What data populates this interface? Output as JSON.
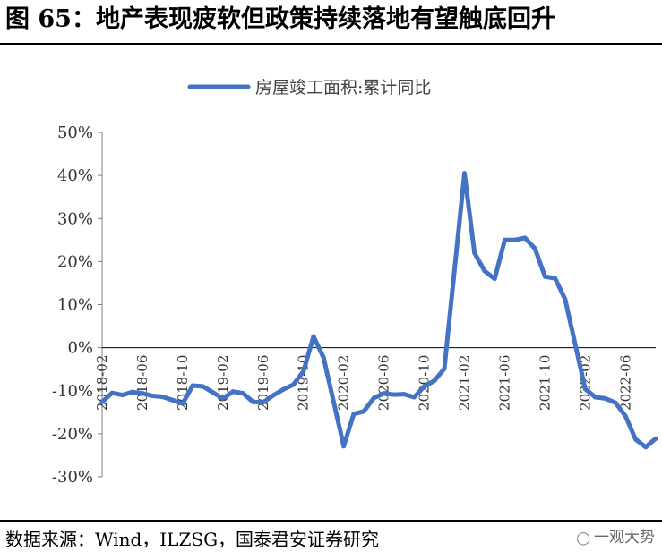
{
  "figure": {
    "title": "图 65：地产表现疲软但政策持续落地有望触底回升",
    "source": "数据来源：Wind，ILZSG，国泰君安证券研究",
    "watermark": "一观大势"
  },
  "colors": {
    "series_line": "#4472C4",
    "axis": "#808080",
    "text": "#000000"
  },
  "chart_data": {
    "type": "line",
    "title": "",
    "xlabel": "",
    "ylabel": "",
    "ylim": [
      -0.3,
      0.5
    ],
    "ytick_step": 0.1,
    "yticks": [
      "50%",
      "40%",
      "30%",
      "20%",
      "10%",
      "0%",
      "-10%",
      "-20%",
      "-30%"
    ],
    "xticks": [
      "2018-02",
      "2018-06",
      "2018-10",
      "2019-02",
      "2019-06",
      "2019-10",
      "2020-02",
      "2020-06",
      "2020-10",
      "2021-02",
      "2021-06",
      "2021-10",
      "2022-02",
      "2022-06"
    ],
    "legend": "top-center",
    "grid": false,
    "series": [
      {
        "name": "房屋竣工面积:累计同比",
        "x": [
          "2018-02",
          "2018-03",
          "2018-04",
          "2018-05",
          "2018-06",
          "2018-07",
          "2018-08",
          "2018-09",
          "2018-10",
          "2018-11",
          "2018-12",
          "2019-02",
          "2019-03",
          "2019-04",
          "2019-05",
          "2019-06",
          "2019-07",
          "2019-08",
          "2019-09",
          "2019-10",
          "2019-11",
          "2019-12",
          "2020-02",
          "2020-03",
          "2020-04",
          "2020-05",
          "2020-06",
          "2020-07",
          "2020-08",
          "2020-09",
          "2020-10",
          "2020-11",
          "2020-12",
          "2021-02",
          "2021-03",
          "2021-04",
          "2021-05",
          "2021-06",
          "2021-07",
          "2021-08",
          "2021-09",
          "2021-10",
          "2021-11",
          "2021-12",
          "2022-02",
          "2022-03",
          "2022-04",
          "2022-05",
          "2022-06",
          "2022-07",
          "2022-08",
          "2022-09"
        ],
        "values": [
          -0.126,
          -0.105,
          -0.11,
          -0.103,
          -0.106,
          -0.112,
          -0.114,
          -0.122,
          -0.13,
          -0.088,
          -0.09,
          -0.118,
          -0.102,
          -0.106,
          -0.126,
          -0.127,
          -0.111,
          -0.097,
          -0.086,
          -0.055,
          0.026,
          -0.023,
          -0.229,
          -0.154,
          -0.148,
          -0.117,
          -0.106,
          -0.109,
          -0.108,
          -0.115,
          -0.09,
          -0.077,
          -0.049,
          0.405,
          0.22,
          0.178,
          0.16,
          0.25,
          0.25,
          0.255,
          0.23,
          0.165,
          0.161,
          0.112,
          -0.096,
          -0.115,
          -0.118,
          -0.128,
          -0.159,
          -0.213,
          -0.231,
          -0.211
        ]
      }
    ]
  }
}
